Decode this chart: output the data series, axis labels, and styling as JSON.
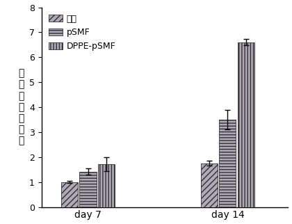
{
  "groups": [
    "day 7",
    "day 14"
  ],
  "series": [
    "肝素",
    "pSMF",
    "DPPE-pSMF"
  ],
  "values": [
    [
      1.0,
      1.42,
      1.72
    ],
    [
      1.75,
      3.5,
      6.6
    ]
  ],
  "errors": [
    [
      0.04,
      0.12,
      0.28
    ],
    [
      0.1,
      0.38,
      0.13
    ]
  ],
  "ylim": [
    0,
    8
  ],
  "yticks": [
    0,
    1,
    2,
    3,
    4,
    5,
    6,
    7,
    8
  ],
  "bar_width": 0.2,
  "group_centers": [
    1.0,
    2.5
  ],
  "ylabel_chars": [
    "基",
    "因",
    "相",
    "对",
    "表",
    "达",
    "量"
  ],
  "bar_colors": [
    "#b0a8b8",
    "#b0a8b8",
    "#b0a8b8"
  ],
  "hatches": [
    "////",
    "----",
    "||||"
  ],
  "hatch_colors": [
    "#404040",
    "#404040",
    "#404040"
  ],
  "background_color": "#ffffff",
  "legend_fontsize": 9,
  "tick_fontsize": 9,
  "group_label_fontsize": 10,
  "ylabel_fontsize": 10
}
